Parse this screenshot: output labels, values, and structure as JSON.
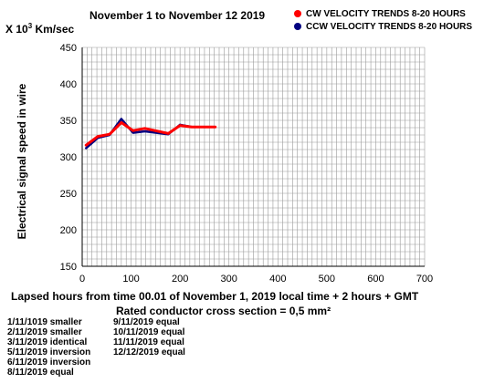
{
  "title": "November 1 to November 12  2019",
  "y_unit": {
    "prefix": "X 10",
    "exponent": "3",
    "suffix": " Km/sec"
  },
  "legend": [
    {
      "label": "CW VELOCITY TRENDS 8-20 HOURS",
      "color": "#ff0000"
    },
    {
      "label": "CCW VELOCITY TRENDS 8-20 HOURS",
      "color": "#000080"
    }
  ],
  "x_axis_label": "Lapsed hours from time 00.01 of November 1,    2019   local time   + 2 hours + GMT",
  "cross_section": "Rated conductor cross section = 0,5 mm²",
  "notes_left": [
    "1/11/1019 smaller",
    "2/11/2019 smaller",
    "3/11/2019  identical",
    "5/11/2019  inversion",
    "6/11/2019  inversion",
    "8/11/2019 equal"
  ],
  "notes_right": [
    "9/11/2019 equal",
    "10/11/2019 equal",
    "11/11/2019 equal",
    "12/12/2019 equal"
  ],
  "chart_data": {
    "type": "line",
    "title": "November 1 to November 12  2019",
    "xlabel": "Lapsed hours from time 00.01 of November 1,    2019   local time   + 2 hours + GMT",
    "ylabel": "Electrical signal speed in wire",
    "xlim": [
      0,
      700
    ],
    "ylim": [
      150,
      450
    ],
    "x_ticks": [
      0,
      100,
      200,
      300,
      400,
      500,
      600,
      700
    ],
    "y_ticks": [
      150,
      200,
      250,
      300,
      350,
      400,
      450
    ],
    "grid": true,
    "legend_position": "top-right",
    "series": [
      {
        "name": "CW VELOCITY TRENDS 8-20 HOURS",
        "color": "#ff0000",
        "x": [
          8,
          32,
          56,
          80,
          104,
          128,
          176,
          200,
          224,
          248,
          272
        ],
        "y": [
          316,
          328,
          331,
          347,
          336,
          339,
          332,
          343,
          341,
          341,
          341
        ]
      },
      {
        "name": "CCW VELOCITY TRENDS 8-20 HOURS",
        "color": "#000080",
        "x": [
          8,
          32,
          56,
          80,
          104,
          128,
          176,
          200,
          224,
          248,
          272
        ],
        "y": [
          312,
          326,
          330,
          352,
          333,
          335,
          331,
          344,
          341,
          341,
          341
        ]
      }
    ]
  }
}
